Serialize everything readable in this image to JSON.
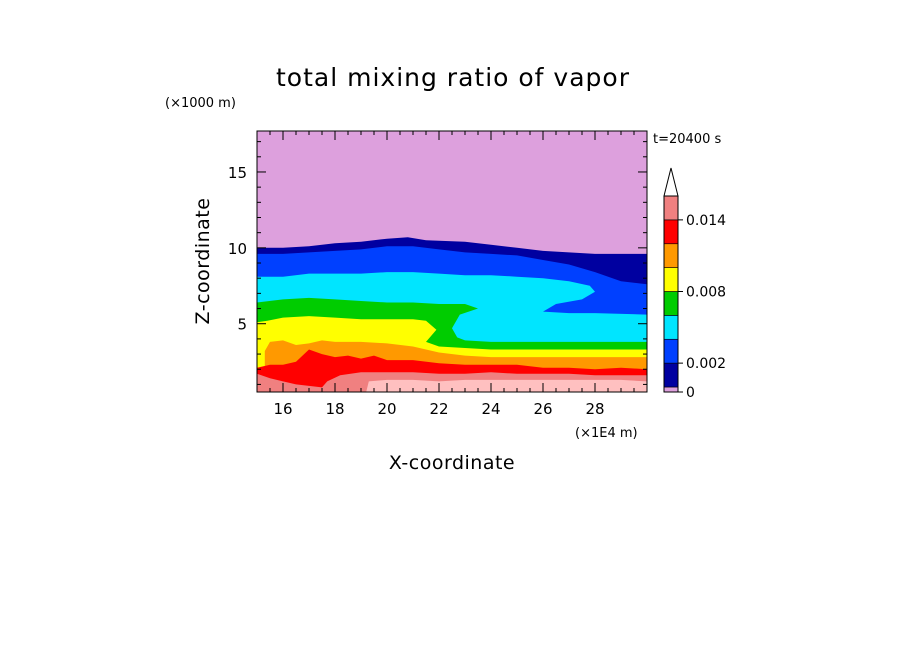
{
  "chart_data": {
    "type": "heatmap",
    "title": "total mixing ratio of vapor",
    "xlabel": "X-coordinate",
    "ylabel": "Z-coordinate",
    "x_unit": "(×1E4 m)",
    "y_unit": "(×1000 m)",
    "time_label": "t=20400 s",
    "xlim": [
      15,
      30
    ],
    "ylim": [
      0.5,
      17.7
    ],
    "x_ticks": [
      "16",
      "18",
      "20",
      "22",
      "24",
      "26",
      "28"
    ],
    "x_tick_values": [
      16,
      18,
      20,
      22,
      24,
      26,
      28
    ],
    "y_ticks": [
      "5",
      "10",
      "15"
    ],
    "y_tick_values": [
      5,
      10,
      15
    ],
    "colorbar": {
      "levels": [
        0,
        0.0005,
        0.002,
        0.004,
        0.006,
        0.008,
        0.01,
        0.012,
        0.014,
        0.016
      ],
      "labels": [
        "0",
        "0.002",
        "0.008",
        "0.014"
      ],
      "label_values": [
        0,
        0.002,
        0.008,
        0.014
      ],
      "colors": [
        "#dda0dd",
        "#0000a0",
        "#0040ff",
        "#00e5ff",
        "#00cc00",
        "#ffff00",
        "#ff9900",
        "#ff0000",
        "#f08080",
        "#ffc0c0"
      ],
      "extend": "max"
    },
    "regions": [
      {
        "level": 0,
        "color": "#dda0dd",
        "top": [
          [
            15,
            17.7
          ],
          [
            30,
            17.7
          ]
        ],
        "bottom": [
          [
            15,
            0.5
          ],
          [
            30,
            0.5
          ]
        ]
      },
      {
        "level": 1,
        "color": "#0000a0",
        "top": [
          [
            15,
            10.0
          ],
          [
            16,
            10.0
          ],
          [
            17,
            10.1
          ],
          [
            18,
            10.3
          ],
          [
            19,
            10.4
          ],
          [
            20,
            10.6
          ],
          [
            20.8,
            10.7
          ],
          [
            21.5,
            10.5
          ],
          [
            23,
            10.4
          ],
          [
            24,
            10.2
          ],
          [
            25,
            10.0
          ],
          [
            26,
            9.8
          ],
          [
            27,
            9.7
          ],
          [
            28,
            9.6
          ],
          [
            29,
            9.6
          ],
          [
            30,
            9.6
          ]
        ],
        "bottom": [
          [
            15,
            0.5
          ],
          [
            30,
            0.5
          ]
        ]
      },
      {
        "level": 2,
        "color": "#0040ff",
        "top": [
          [
            15,
            9.6
          ],
          [
            16,
            9.6
          ],
          [
            17,
            9.7
          ],
          [
            18,
            9.8
          ],
          [
            19,
            9.9
          ],
          [
            20,
            10.1
          ],
          [
            21,
            10.1
          ],
          [
            22,
            9.9
          ],
          [
            23,
            9.7
          ],
          [
            24,
            9.6
          ],
          [
            25,
            9.5
          ],
          [
            26,
            9.2
          ],
          [
            27,
            8.9
          ],
          [
            28,
            8.4
          ],
          [
            29,
            7.8
          ],
          [
            30,
            7.6
          ]
        ],
        "bottom": [
          [
            15,
            0.5
          ],
          [
            30,
            0.5
          ]
        ]
      },
      {
        "level": 3,
        "color": "#00e5ff",
        "top": [
          [
            15,
            8.1
          ],
          [
            16,
            8.1
          ],
          [
            17,
            8.3
          ],
          [
            18,
            8.3
          ],
          [
            19,
            8.3
          ],
          [
            20,
            8.4
          ],
          [
            21,
            8.4
          ],
          [
            22,
            8.3
          ],
          [
            23,
            8.2
          ],
          [
            24,
            8.2
          ],
          [
            25,
            8.1
          ],
          [
            26,
            8.0
          ],
          [
            27,
            7.8
          ],
          [
            27.8,
            7.5
          ],
          [
            28,
            7.1
          ],
          [
            27.5,
            6.6
          ],
          [
            26.5,
            6.3
          ],
          [
            26.0,
            5.8
          ],
          [
            27,
            5.7
          ],
          [
            28,
            5.7
          ],
          [
            30,
            5.6
          ]
        ],
        "bottom": [
          [
            15,
            0.5
          ],
          [
            30,
            0.5
          ]
        ]
      },
      {
        "level": 4,
        "color": "#00cc00",
        "top": [
          [
            15,
            6.4
          ],
          [
            16,
            6.6
          ],
          [
            17,
            6.7
          ],
          [
            18,
            6.6
          ],
          [
            19,
            6.5
          ],
          [
            20,
            6.4
          ],
          [
            21,
            6.4
          ],
          [
            22,
            6.3
          ],
          [
            23,
            6.3
          ],
          [
            23.5,
            6.0
          ],
          [
            22.8,
            5.6
          ],
          [
            22.5,
            4.7
          ],
          [
            22.7,
            4.1
          ],
          [
            23,
            3.9
          ],
          [
            24,
            3.8
          ],
          [
            26,
            3.8
          ],
          [
            28,
            3.8
          ],
          [
            30,
            3.8
          ]
        ],
        "bottom": [
          [
            15,
            0.5
          ],
          [
            30,
            0.5
          ]
        ]
      },
      {
        "level": 5,
        "color": "#ffff00",
        "top": [
          [
            15,
            5.1
          ],
          [
            15.4,
            5.2
          ],
          [
            16,
            5.4
          ],
          [
            17,
            5.5
          ],
          [
            18,
            5.4
          ],
          [
            19,
            5.3
          ],
          [
            20,
            5.3
          ],
          [
            21,
            5.3
          ],
          [
            21.5,
            5.2
          ],
          [
            21.9,
            4.6
          ],
          [
            21.5,
            3.8
          ],
          [
            22,
            3.5
          ],
          [
            23,
            3.4
          ],
          [
            24,
            3.3
          ],
          [
            26,
            3.3
          ],
          [
            28,
            3.3
          ],
          [
            30,
            3.3
          ]
        ],
        "bottom": [
          [
            15,
            0.5
          ],
          [
            30,
            0.5
          ]
        ]
      },
      {
        "level": 6,
        "color": "#ff9900",
        "top": [
          [
            15.3,
            0.5
          ],
          [
            15.3,
            3.2
          ],
          [
            15.5,
            3.8
          ],
          [
            16,
            3.9
          ],
          [
            16.5,
            3.6
          ],
          [
            17,
            3.7
          ],
          [
            17.5,
            3.9
          ],
          [
            18,
            3.8
          ],
          [
            19,
            3.8
          ],
          [
            20,
            3.7
          ],
          [
            21,
            3.5
          ],
          [
            22,
            3.1
          ],
          [
            23,
            2.9
          ],
          [
            24,
            2.8
          ],
          [
            26,
            2.8
          ],
          [
            28,
            2.8
          ],
          [
            30,
            2.8
          ]
        ],
        "bottom": [
          [
            15,
            0.5
          ],
          [
            30,
            0.5
          ]
        ]
      },
      {
        "level": 7,
        "color": "#ff0000",
        "top": [
          [
            15,
            2.1
          ],
          [
            15.5,
            2.3
          ],
          [
            16,
            2.3
          ],
          [
            16.5,
            2.5
          ],
          [
            17,
            3.3
          ],
          [
            17.5,
            3.0
          ],
          [
            18,
            2.8
          ],
          [
            18.5,
            2.9
          ],
          [
            19,
            2.7
          ],
          [
            19.5,
            2.9
          ],
          [
            20,
            2.6
          ],
          [
            21,
            2.6
          ],
          [
            22,
            2.4
          ],
          [
            23,
            2.3
          ],
          [
            24,
            2.3
          ],
          [
            25,
            2.3
          ],
          [
            26,
            2.1
          ],
          [
            27,
            2.1
          ],
          [
            28,
            2.0
          ],
          [
            29,
            2.1
          ],
          [
            30,
            2.0
          ]
        ],
        "bottom": [
          [
            15,
            0.5
          ],
          [
            30,
            0.5
          ]
        ]
      },
      {
        "level": 8,
        "color": "#f08080",
        "top": [
          [
            15,
            1.7
          ],
          [
            15.5,
            1.4
          ],
          [
            16,
            1.2
          ],
          [
            16.5,
            1.0
          ],
          [
            17,
            0.9
          ],
          [
            17.5,
            0.8
          ],
          [
            17.7,
            1.2
          ],
          [
            18.2,
            1.6
          ],
          [
            19,
            1.8
          ],
          [
            20,
            1.8
          ],
          [
            21,
            1.8
          ],
          [
            22,
            1.7
          ],
          [
            23,
            1.7
          ],
          [
            24,
            1.8
          ],
          [
            25,
            1.7
          ],
          [
            26,
            1.7
          ],
          [
            27,
            1.7
          ],
          [
            28,
            1.6
          ],
          [
            29,
            1.6
          ],
          [
            30,
            1.6
          ]
        ],
        "bottom": [
          [
            15,
            0.5
          ],
          [
            30,
            0.5
          ]
        ]
      },
      {
        "level": 9,
        "color": "#ffc0c0",
        "top": [
          [
            19.2,
            0.5
          ],
          [
            19.3,
            1.2
          ],
          [
            20,
            1.3
          ],
          [
            21,
            1.3
          ],
          [
            22,
            1.2
          ],
          [
            23,
            1.3
          ],
          [
            24,
            1.3
          ],
          [
            25,
            1.3
          ],
          [
            26,
            1.3
          ],
          [
            27,
            1.3
          ],
          [
            28,
            1.3
          ],
          [
            29,
            1.3
          ],
          [
            30,
            1.2
          ]
        ],
        "bottom": [
          [
            19.2,
            0.5
          ],
          [
            30,
            0.5
          ]
        ]
      }
    ]
  }
}
